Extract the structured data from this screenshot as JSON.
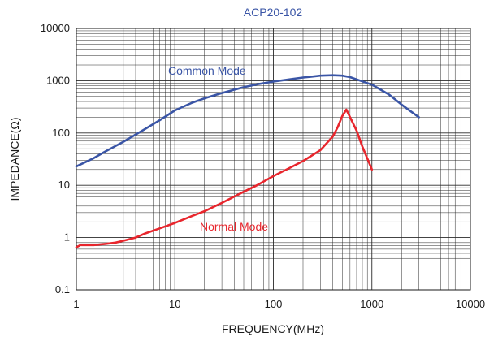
{
  "chart_data": {
    "type": "line",
    "title": "ACP20-102",
    "xlabel": "FREQUENCY(MHz)",
    "ylabel": "IMPEDANCE(Ω)",
    "x_scale": "log",
    "y_scale": "log",
    "xlim": [
      1,
      10000
    ],
    "ylim": [
      0.1,
      10000
    ],
    "x_ticks": [
      {
        "value": 1,
        "label": "1"
      },
      {
        "value": 10,
        "label": "10"
      },
      {
        "value": 100,
        "label": "100"
      },
      {
        "value": 1000,
        "label": "1000"
      },
      {
        "value": 10000,
        "label": "10000"
      }
    ],
    "y_ticks": [
      {
        "value": 0.1,
        "label": "0.1"
      },
      {
        "value": 1,
        "label": "1"
      },
      {
        "value": 10,
        "label": "10"
      },
      {
        "value": 100,
        "label": "100"
      },
      {
        "value": 1000,
        "label": "1000"
      },
      {
        "value": 10000,
        "label": "10000"
      }
    ],
    "grid": true,
    "series": [
      {
        "name": "Common Mode",
        "color": "#3a55a6",
        "x": [
          1,
          1.5,
          2,
          3,
          5,
          7,
          10,
          15,
          20,
          30,
          50,
          70,
          100,
          150,
          200,
          300,
          400,
          500,
          600,
          700,
          1000,
          1500,
          2000,
          3000
        ],
        "y": [
          23,
          33,
          45,
          68,
          120,
          175,
          270,
          380,
          460,
          580,
          750,
          860,
          960,
          1070,
          1150,
          1250,
          1270,
          1250,
          1170,
          1060,
          840,
          540,
          350,
          200
        ]
      },
      {
        "name": "Normal Mode",
        "color": "#e8262d",
        "x": [
          1,
          1.1,
          1.5,
          2,
          2.5,
          3,
          4,
          5,
          7,
          10,
          15,
          20,
          30,
          50,
          70,
          100,
          150,
          200,
          300,
          400,
          450,
          500,
          550,
          600,
          700,
          800,
          1000
        ],
        "y": [
          0.65,
          0.72,
          0.72,
          0.76,
          0.8,
          0.87,
          1.0,
          1.2,
          1.5,
          1.9,
          2.6,
          3.2,
          4.6,
          7.5,
          10.3,
          15,
          22,
          29,
          47,
          85,
          130,
          210,
          280,
          200,
          110,
          55,
          20
        ]
      }
    ]
  }
}
